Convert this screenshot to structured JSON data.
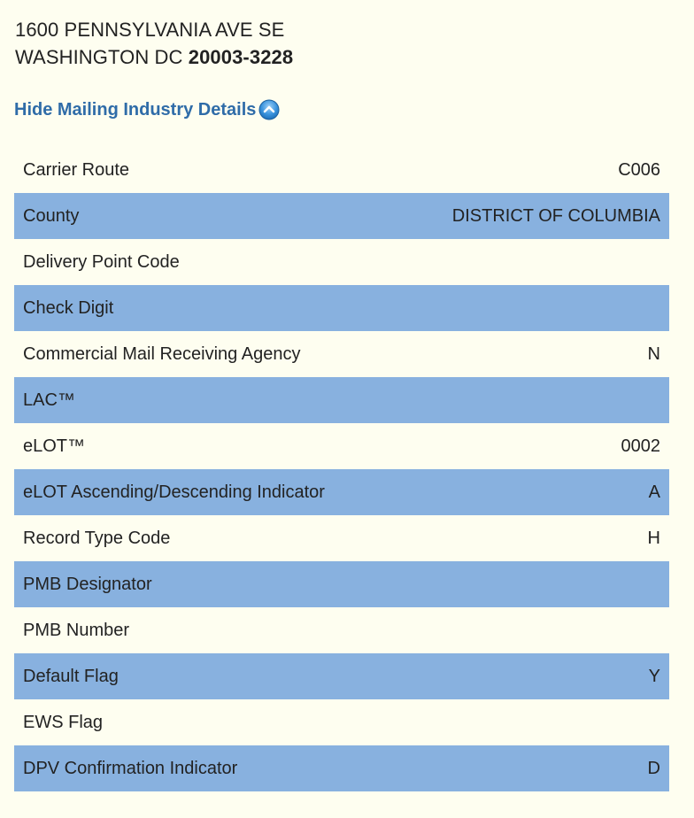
{
  "address": {
    "line1": "1600 PENNSYLVANIA AVE SE",
    "city_state": "WASHINGTON DC",
    "zip": "20003-3228"
  },
  "toggle": {
    "label": "Hide Mailing Industry Details",
    "icon": "chevron-up-circle-icon"
  },
  "colors": {
    "background": "#fefef0",
    "link": "#2f6ca8",
    "row_alt": "#88b1df"
  },
  "details": [
    {
      "label": "Carrier Route",
      "value": "C006"
    },
    {
      "label": "County",
      "value": "DISTRICT OF COLUMBIA"
    },
    {
      "label": "Delivery Point Code",
      "value": ""
    },
    {
      "label": "Check Digit",
      "value": ""
    },
    {
      "label": "Commercial Mail Receiving Agency",
      "value": "N"
    },
    {
      "label": "LAC™",
      "value": ""
    },
    {
      "label": "eLOT™",
      "value": "0002"
    },
    {
      "label": "eLOT Ascending/Descending Indicator",
      "value": "A"
    },
    {
      "label": "Record Type Code",
      "value": "H"
    },
    {
      "label": "PMB Designator",
      "value": ""
    },
    {
      "label": "PMB Number",
      "value": ""
    },
    {
      "label": "Default Flag",
      "value": "Y"
    },
    {
      "label": "EWS Flag",
      "value": ""
    },
    {
      "label": "DPV Confirmation Indicator",
      "value": "D"
    }
  ]
}
